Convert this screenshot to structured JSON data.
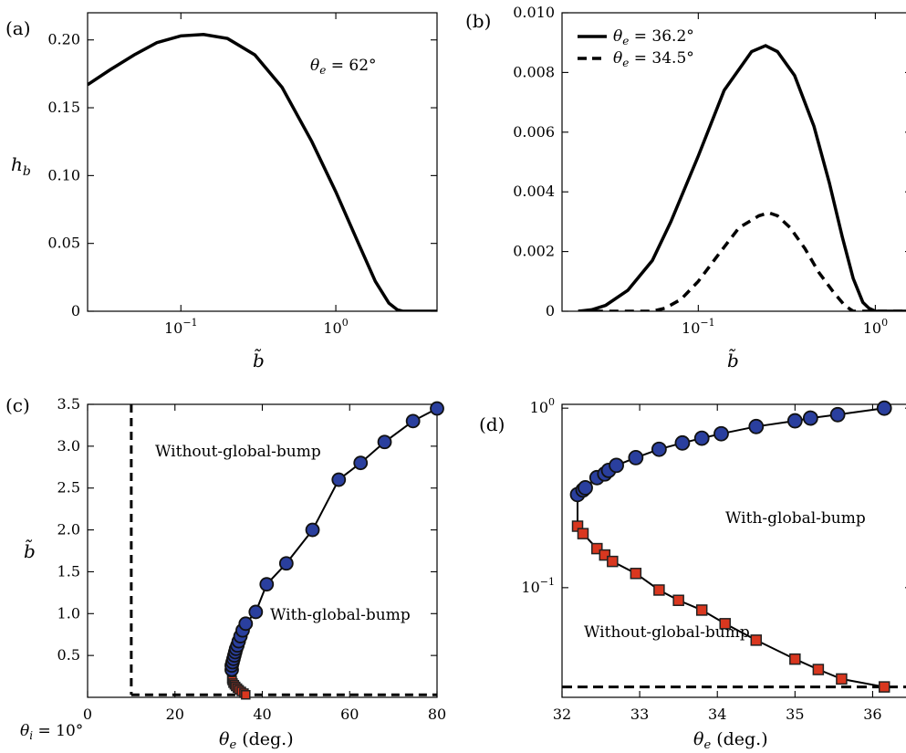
{
  "chart_data": [
    {
      "id": "a",
      "type": "line",
      "panel_label": "(a)",
      "xscale": "log",
      "xlim": [
        0.025,
        4.5
      ],
      "ylim": [
        0,
        0.22
      ],
      "x_ticks": [
        {
          "v": 0.1,
          "label": "10",
          "exp": "−1"
        },
        {
          "v": 1,
          "label": "10",
          "exp": "0"
        }
      ],
      "y_ticks": [
        {
          "v": 0,
          "label": "0"
        },
        {
          "v": 0.05,
          "label": "0.05"
        },
        {
          "v": 0.1,
          "label": "0.10"
        },
        {
          "v": 0.15,
          "label": "0.15"
        },
        {
          "v": 0.2,
          "label": "0.20"
        }
      ],
      "xlabel": "b̃",
      "ylabel": "h",
      "ylabel_sub": "b",
      "annotation": {
        "var": "θ",
        "sub": "e",
        "rest": " = 62°"
      },
      "series": [
        {
          "style": "solid",
          "x": [
            0.025,
            0.035,
            0.05,
            0.07,
            0.1,
            0.14,
            0.2,
            0.3,
            0.45,
            0.7,
            1.0,
            1.4,
            1.8,
            2.2,
            2.5,
            2.7,
            4.5
          ],
          "y": [
            0.167,
            0.178,
            0.189,
            0.198,
            0.203,
            0.204,
            0.201,
            0.189,
            0.165,
            0.125,
            0.088,
            0.05,
            0.022,
            0.006,
            0.001,
            0.0,
            0.0
          ]
        }
      ]
    },
    {
      "id": "b",
      "type": "line",
      "panel_label": "(b)",
      "xscale": "log",
      "xlim": [
        0.017,
        1.6
      ],
      "ylim": [
        0,
        0.01
      ],
      "x_ticks": [
        {
          "v": 0.1,
          "label": "10",
          "exp": "−1"
        },
        {
          "v": 1,
          "label": "10",
          "exp": "0"
        }
      ],
      "y_ticks": [
        {
          "v": 0,
          "label": "0"
        },
        {
          "v": 0.002,
          "label": "0.002"
        },
        {
          "v": 0.004,
          "label": "0.004"
        },
        {
          "v": 0.006,
          "label": "0.006"
        },
        {
          "v": 0.008,
          "label": "0.008"
        },
        {
          "v": 0.01,
          "label": "0.010"
        }
      ],
      "xlabel": "b̃",
      "legend": [
        {
          "var": "θ",
          "sub": "e",
          "rest": " = 36.2°",
          "style": "solid"
        },
        {
          "var": "θ",
          "sub": "e",
          "rest": " = 34.5°",
          "style": "dashed"
        }
      ],
      "series": [
        {
          "style": "solid",
          "x": [
            0.021,
            0.025,
            0.03,
            0.04,
            0.055,
            0.07,
            0.1,
            0.14,
            0.2,
            0.24,
            0.28,
            0.35,
            0.45,
            0.55,
            0.65,
            0.75,
            0.85,
            0.92,
            1.0,
            1.6
          ],
          "y": [
            0.0,
            5e-05,
            0.0002,
            0.0007,
            0.0017,
            0.003,
            0.0052,
            0.0074,
            0.0087,
            0.0089,
            0.0087,
            0.0079,
            0.0062,
            0.0043,
            0.0025,
            0.0011,
            0.0003,
            0.0001,
            0.0,
            0.0
          ]
        },
        {
          "style": "dashed",
          "x": [
            0.021,
            0.055,
            0.065,
            0.08,
            0.1,
            0.13,
            0.17,
            0.22,
            0.25,
            0.28,
            0.33,
            0.4,
            0.48,
            0.57,
            0.67,
            0.75,
            0.8,
            1.6
          ],
          "y": [
            0.0,
            0.0,
            0.0001,
            0.0004,
            0.001,
            0.0019,
            0.0028,
            0.0032,
            0.0033,
            0.0032,
            0.0028,
            0.0021,
            0.0013,
            0.0007,
            0.0002,
            0.0,
            0.0,
            0.0
          ]
        }
      ]
    },
    {
      "id": "c",
      "type": "line",
      "panel_label": "(c)",
      "xscale": "linear",
      "xlim": [
        0,
        80
      ],
      "ylim": [
        0,
        3.5
      ],
      "x_ticks": [
        {
          "v": 0,
          "label": "0"
        },
        {
          "v": 20,
          "label": "20"
        },
        {
          "v": 40,
          "label": "40"
        },
        {
          "v": 60,
          "label": "60"
        },
        {
          "v": 80,
          "label": "80"
        }
      ],
      "y_ticks": [
        {
          "v": 0.5,
          "label": "0.5"
        },
        {
          "v": 1.0,
          "label": "1.0"
        },
        {
          "v": 1.5,
          "label": "1.5"
        },
        {
          "v": 2.0,
          "label": "2.0"
        },
        {
          "v": 2.5,
          "label": "2.5"
        },
        {
          "v": 3.0,
          "label": "3.0"
        },
        {
          "v": 3.5,
          "label": "3.5"
        }
      ],
      "xlabel": {
        "var": "θ",
        "sub": "e",
        "rest": " (deg.)"
      },
      "ylabel": "b̃",
      "theta_i_label": {
        "var": "θ",
        "sub": "i",
        "rest": " = 10°"
      },
      "vline_x": 10,
      "hline_y": 0.03,
      "region_upper": "Without-global-bump",
      "region_lower": "With-global-bump",
      "upper_branch": {
        "color": "#2a3f9e",
        "x": [
          33.0,
          33.0,
          33.2,
          33.4,
          33.6,
          33.8,
          34.0,
          34.3,
          34.6,
          35.0,
          35.5,
          36.2,
          38.5,
          41.0,
          45.5,
          51.5,
          57.5,
          62.5,
          68.0,
          74.5,
          80.0
        ],
        "y": [
          0.33,
          0.38,
          0.42,
          0.46,
          0.5,
          0.54,
          0.58,
          0.62,
          0.67,
          0.73,
          0.8,
          0.88,
          1.02,
          1.35,
          1.6,
          2.0,
          2.6,
          2.8,
          3.05,
          3.3,
          3.45
        ]
      },
      "lower_branch": {
        "color": "#d9371f",
        "x": [
          33.0,
          33.1,
          33.3,
          33.6,
          33.9,
          34.3,
          34.7,
          35.2,
          35.8,
          36.2
        ],
        "y": [
          0.22,
          0.2,
          0.17,
          0.15,
          0.13,
          0.11,
          0.09,
          0.07,
          0.05,
          0.03
        ]
      }
    },
    {
      "id": "d",
      "type": "line",
      "panel_label": "(d)",
      "xscale": "linear",
      "yscale": "log",
      "xlim": [
        32,
        36.5
      ],
      "ylim": [
        0.0245,
        1.05
      ],
      "x_ticks": [
        {
          "v": 32,
          "label": "32"
        },
        {
          "v": 33,
          "label": "33"
        },
        {
          "v": 34,
          "label": "34"
        },
        {
          "v": 35,
          "label": "35"
        },
        {
          "v": 36,
          "label": "36"
        }
      ],
      "y_ticks": [
        {
          "v": 0.1,
          "label": "10",
          "exp": "−1"
        },
        {
          "v": 1,
          "label": "10",
          "exp": "0"
        }
      ],
      "xlabel": {
        "var": "θ",
        "sub": "e",
        "rest": " (deg.)"
      },
      "hline_y": 0.028,
      "region_upper": "With-global-bump",
      "region_lower": "Without-global-bump",
      "upper_branch": {
        "color": "#2a3f9e",
        "x": [
          32.2,
          32.27,
          32.3,
          32.45,
          32.55,
          32.6,
          32.7,
          32.95,
          33.25,
          33.55,
          33.8,
          34.05,
          34.5,
          35.0,
          35.2,
          35.55,
          36.15
        ],
        "y": [
          0.33,
          0.35,
          0.36,
          0.41,
          0.43,
          0.45,
          0.48,
          0.53,
          0.59,
          0.64,
          0.68,
          0.72,
          0.79,
          0.85,
          0.88,
          0.92,
          1.0
        ]
      },
      "lower_branch": {
        "color": "#d9371f",
        "x": [
          32.2,
          32.27,
          32.45,
          32.55,
          32.65,
          32.95,
          33.25,
          33.5,
          33.8,
          34.1,
          34.5,
          35.0,
          35.3,
          35.6,
          36.15
        ],
        "y": [
          0.22,
          0.2,
          0.165,
          0.152,
          0.14,
          0.12,
          0.097,
          0.085,
          0.075,
          0.063,
          0.051,
          0.04,
          0.035,
          0.031,
          0.028
        ]
      }
    }
  ]
}
